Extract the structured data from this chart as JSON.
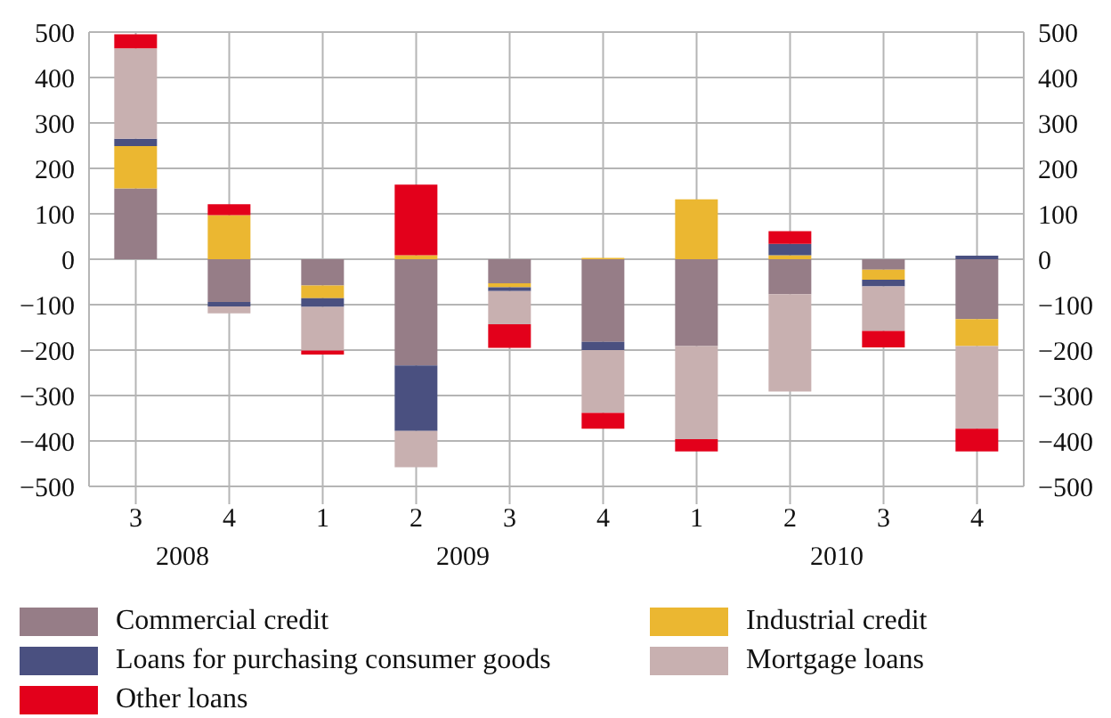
{
  "chart_data": {
    "type": "bar",
    "stacked": true,
    "categories": [
      "3",
      "4",
      "1",
      "2",
      "3",
      "4",
      "1",
      "2",
      "3",
      "4"
    ],
    "annotations": [
      "2008",
      "2009",
      "2010"
    ],
    "series": [
      {
        "name": "Commercial credit",
        "color": "#967d87",
        "values": [
          156,
          -94,
          -58,
          -234,
          -53,
          -182,
          -191,
          -77,
          -23,
          -132
        ]
      },
      {
        "name": "Industrial credit",
        "color": "#ebb731",
        "values": [
          93,
          97,
          -28,
          9,
          -9,
          3,
          132,
          9,
          -22,
          -59
        ]
      },
      {
        "name": "Loans for purchasing consumer goods",
        "color": "#4a5080",
        "values": [
          16,
          -10,
          -19,
          -144,
          -8,
          -18,
          0,
          25,
          -15,
          8
        ]
      },
      {
        "name": "Mortgage loans",
        "color": "#c8b0b0",
        "values": [
          199,
          -15,
          -96,
          -80,
          -73,
          -138,
          -205,
          -214,
          -98,
          -182
        ]
      },
      {
        "name": "Other loans",
        "color": "#e3001b",
        "values": [
          31,
          24,
          -9,
          155,
          -52,
          -35,
          -27,
          28,
          -36,
          -50
        ]
      }
    ],
    "ylim": [
      -500,
      500
    ],
    "yticks": [
      {
        "value": -500,
        "label": "−500"
      },
      {
        "value": -400,
        "label": "−400"
      },
      {
        "value": -300,
        "label": "−300"
      },
      {
        "value": -200,
        "label": "−200"
      },
      {
        "value": -100,
        "label": "−100"
      },
      0,
      100,
      200,
      300,
      400,
      500
    ],
    "y2lim": [
      -500,
      500
    ],
    "y2ticks": [
      {
        "value": -500,
        "label": "−500"
      },
      {
        "value": -400,
        "label": "−400"
      },
      {
        "value": -300,
        "label": "−300"
      },
      {
        "value": -200,
        "label": "−200"
      },
      {
        "value": -100,
        "label": "−100"
      },
      0,
      100,
      200,
      300,
      400,
      500
    ],
    "grid": true,
    "legend": "bottom"
  }
}
